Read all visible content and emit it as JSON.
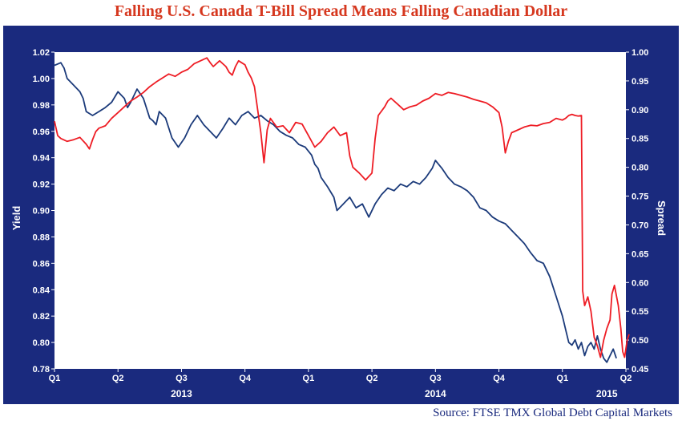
{
  "title": "Falling U.S. Canada T-Bill Spread Means Falling Canadian Dollar",
  "source": "Source: FTSE TMX Global Debt Capital Markets",
  "colors": {
    "frame": "#1a2a7e",
    "yield_line": "#1b3a7a",
    "spread_line": "#ee1c24",
    "title": "#d6381f"
  },
  "chart_data": {
    "type": "line",
    "ylabel": "Yield",
    "y2label": "Spread",
    "ylim": [
      0.78,
      1.02
    ],
    "y2lim": [
      0.45,
      1.0
    ],
    "yticks": [
      "0.78",
      "0.80",
      "0.82",
      "0.84",
      "0.86",
      "0.88",
      "0.90",
      "0.92",
      "0.94",
      "0.96",
      "0.98",
      "1.00",
      "1.02"
    ],
    "y2ticks": [
      "0.45",
      "0.50",
      "0.55",
      "0.60",
      "0.65",
      "0.70",
      "0.75",
      "0.80",
      "0.85",
      "0.90",
      "0.95",
      "1.00"
    ],
    "xlim": [
      0,
      9
    ],
    "xticks": [
      {
        "x": 0,
        "label": "Q1"
      },
      {
        "x": 1,
        "label": "Q2"
      },
      {
        "x": 2,
        "label": "Q3"
      },
      {
        "x": 3,
        "label": "Q4"
      },
      {
        "x": 4,
        "label": "Q1"
      },
      {
        "x": 5,
        "label": "Q2"
      },
      {
        "x": 6,
        "label": "Q3"
      },
      {
        "x": 7,
        "label": "Q4"
      },
      {
        "x": 8,
        "label": "Q1"
      },
      {
        "x": 9,
        "label": "Q2"
      }
    ],
    "years": [
      {
        "x": 2.0,
        "label": "2013"
      },
      {
        "x": 6.0,
        "label": "2014"
      },
      {
        "x": 8.7,
        "label": "2015"
      }
    ],
    "series": [
      {
        "axis": "left",
        "points": [
          [
            0.0,
            1.01
          ],
          [
            0.1,
            1.012
          ],
          [
            0.15,
            1.008
          ],
          [
            0.2,
            1.0
          ],
          [
            0.3,
            0.995
          ],
          [
            0.4,
            0.99
          ],
          [
            0.45,
            0.985
          ],
          [
            0.5,
            0.975
          ],
          [
            0.6,
            0.972
          ],
          [
            0.7,
            0.975
          ],
          [
            0.8,
            0.978
          ],
          [
            0.9,
            0.982
          ],
          [
            1.0,
            0.99
          ],
          [
            1.1,
            0.985
          ],
          [
            1.15,
            0.978
          ],
          [
            1.2,
            0.982
          ],
          [
            1.3,
            0.992
          ],
          [
            1.4,
            0.985
          ],
          [
            1.5,
            0.97
          ],
          [
            1.55,
            0.968
          ],
          [
            1.6,
            0.965
          ],
          [
            1.65,
            0.975
          ],
          [
            1.75,
            0.97
          ],
          [
            1.85,
            0.955
          ],
          [
            1.95,
            0.948
          ],
          [
            2.05,
            0.955
          ],
          [
            2.15,
            0.965
          ],
          [
            2.25,
            0.972
          ],
          [
            2.35,
            0.965
          ],
          [
            2.45,
            0.96
          ],
          [
            2.55,
            0.955
          ],
          [
            2.65,
            0.962
          ],
          [
            2.75,
            0.97
          ],
          [
            2.85,
            0.965
          ],
          [
            2.95,
            0.972
          ],
          [
            3.05,
            0.975
          ],
          [
            3.15,
            0.97
          ],
          [
            3.25,
            0.972
          ],
          [
            3.35,
            0.968
          ],
          [
            3.45,
            0.965
          ],
          [
            3.55,
            0.96
          ],
          [
            3.65,
            0.957
          ],
          [
            3.75,
            0.955
          ],
          [
            3.85,
            0.95
          ],
          [
            3.95,
            0.948
          ],
          [
            4.05,
            0.942
          ],
          [
            4.1,
            0.935
          ],
          [
            4.15,
            0.932
          ],
          [
            4.2,
            0.925
          ],
          [
            4.3,
            0.918
          ],
          [
            4.4,
            0.91
          ],
          [
            4.45,
            0.9
          ],
          [
            4.55,
            0.905
          ],
          [
            4.65,
            0.91
          ],
          [
            4.75,
            0.902
          ],
          [
            4.85,
            0.905
          ],
          [
            4.95,
            0.895
          ],
          [
            5.05,
            0.905
          ],
          [
            5.15,
            0.912
          ],
          [
            5.25,
            0.917
          ],
          [
            5.35,
            0.915
          ],
          [
            5.45,
            0.92
          ],
          [
            5.55,
            0.918
          ],
          [
            5.65,
            0.922
          ],
          [
            5.75,
            0.92
          ],
          [
            5.85,
            0.925
          ],
          [
            5.95,
            0.932
          ],
          [
            6.0,
            0.938
          ],
          [
            6.05,
            0.935
          ],
          [
            6.1,
            0.932
          ],
          [
            6.2,
            0.925
          ],
          [
            6.3,
            0.92
          ],
          [
            6.4,
            0.918
          ],
          [
            6.5,
            0.915
          ],
          [
            6.6,
            0.91
          ],
          [
            6.7,
            0.902
          ],
          [
            6.8,
            0.9
          ],
          [
            6.9,
            0.895
          ],
          [
            7.0,
            0.892
          ],
          [
            7.1,
            0.89
          ],
          [
            7.2,
            0.885
          ],
          [
            7.3,
            0.88
          ],
          [
            7.4,
            0.875
          ],
          [
            7.5,
            0.868
          ],
          [
            7.6,
            0.862
          ],
          [
            7.7,
            0.86
          ],
          [
            7.8,
            0.85
          ],
          [
            7.9,
            0.835
          ],
          [
            8.0,
            0.82
          ],
          [
            8.05,
            0.81
          ],
          [
            8.1,
            0.8
          ],
          [
            8.15,
            0.798
          ],
          [
            8.2,
            0.802
          ],
          [
            8.25,
            0.795
          ],
          [
            8.3,
            0.8
          ],
          [
            8.35,
            0.79
          ],
          [
            8.4,
            0.797
          ],
          [
            8.45,
            0.8
          ],
          [
            8.5,
            0.795
          ],
          [
            8.55,
            0.805
          ],
          [
            8.6,
            0.795
          ],
          [
            8.65,
            0.788
          ],
          [
            8.7,
            0.785
          ],
          [
            8.75,
            0.79
          ],
          [
            8.8,
            0.795
          ],
          [
            8.85,
            0.788
          ]
        ]
      },
      {
        "axis": "right",
        "points": [
          [
            0.0,
            0.88
          ],
          [
            0.05,
            0.855
          ],
          [
            0.1,
            0.85
          ],
          [
            0.2,
            0.845
          ],
          [
            0.3,
            0.848
          ],
          [
            0.4,
            0.852
          ],
          [
            0.5,
            0.84
          ],
          [
            0.55,
            0.832
          ],
          [
            0.6,
            0.848
          ],
          [
            0.65,
            0.862
          ],
          [
            0.7,
            0.868
          ],
          [
            0.8,
            0.872
          ],
          [
            0.9,
            0.885
          ],
          [
            1.0,
            0.895
          ],
          [
            1.1,
            0.905
          ],
          [
            1.2,
            0.915
          ],
          [
            1.3,
            0.922
          ],
          [
            1.4,
            0.93
          ],
          [
            1.5,
            0.94
          ],
          [
            1.6,
            0.948
          ],
          [
            1.7,
            0.955
          ],
          [
            1.8,
            0.962
          ],
          [
            1.9,
            0.958
          ],
          [
            2.0,
            0.965
          ],
          [
            2.1,
            0.97
          ],
          [
            2.2,
            0.98
          ],
          [
            2.3,
            0.985
          ],
          [
            2.4,
            0.99
          ],
          [
            2.45,
            0.982
          ],
          [
            2.5,
            0.975
          ],
          [
            2.6,
            0.985
          ],
          [
            2.7,
            0.975
          ],
          [
            2.75,
            0.965
          ],
          [
            2.8,
            0.96
          ],
          [
            2.85,
            0.975
          ],
          [
            2.9,
            0.985
          ],
          [
            3.0,
            0.978
          ],
          [
            3.05,
            0.965
          ],
          [
            3.1,
            0.955
          ],
          [
            3.15,
            0.94
          ],
          [
            3.2,
            0.9
          ],
          [
            3.25,
            0.86
          ],
          [
            3.3,
            0.808
          ],
          [
            3.35,
            0.865
          ],
          [
            3.4,
            0.885
          ],
          [
            3.5,
            0.87
          ],
          [
            3.6,
            0.872
          ],
          [
            3.7,
            0.86
          ],
          [
            3.8,
            0.878
          ],
          [
            3.9,
            0.875
          ],
          [
            4.0,
            0.855
          ],
          [
            4.1,
            0.835
          ],
          [
            4.2,
            0.845
          ],
          [
            4.3,
            0.86
          ],
          [
            4.4,
            0.87
          ],
          [
            4.5,
            0.855
          ],
          [
            4.6,
            0.86
          ],
          [
            4.65,
            0.82
          ],
          [
            4.7,
            0.8
          ],
          [
            4.75,
            0.795
          ],
          [
            4.8,
            0.79
          ],
          [
            4.9,
            0.778
          ],
          [
            5.0,
            0.79
          ],
          [
            5.05,
            0.85
          ],
          [
            5.1,
            0.89
          ],
          [
            5.2,
            0.905
          ],
          [
            5.25,
            0.915
          ],
          [
            5.3,
            0.92
          ],
          [
            5.4,
            0.91
          ],
          [
            5.5,
            0.9
          ],
          [
            5.6,
            0.905
          ],
          [
            5.7,
            0.908
          ],
          [
            5.8,
            0.915
          ],
          [
            5.9,
            0.92
          ],
          [
            6.0,
            0.928
          ],
          [
            6.1,
            0.925
          ],
          [
            6.2,
            0.93
          ],
          [
            6.3,
            0.928
          ],
          [
            6.4,
            0.925
          ],
          [
            6.5,
            0.922
          ],
          [
            6.6,
            0.918
          ],
          [
            6.7,
            0.915
          ],
          [
            6.8,
            0.912
          ],
          [
            6.9,
            0.905
          ],
          [
            7.0,
            0.895
          ],
          [
            7.05,
            0.87
          ],
          [
            7.1,
            0.825
          ],
          [
            7.15,
            0.845
          ],
          [
            7.2,
            0.86
          ],
          [
            7.3,
            0.865
          ],
          [
            7.4,
            0.87
          ],
          [
            7.5,
            0.873
          ],
          [
            7.6,
            0.872
          ],
          [
            7.7,
            0.876
          ],
          [
            7.8,
            0.878
          ],
          [
            7.9,
            0.885
          ],
          [
            8.0,
            0.882
          ],
          [
            8.05,
            0.885
          ],
          [
            8.1,
            0.89
          ],
          [
            8.15,
            0.892
          ],
          [
            8.2,
            0.89
          ],
          [
            8.25,
            0.889
          ],
          [
            8.3,
            0.89
          ],
          [
            8.32,
            0.585
          ],
          [
            8.35,
            0.56
          ],
          [
            8.4,
            0.575
          ],
          [
            8.45,
            0.55
          ],
          [
            8.5,
            0.505
          ],
          [
            8.55,
            0.49
          ],
          [
            8.6,
            0.47
          ],
          [
            8.65,
            0.5
          ],
          [
            8.7,
            0.52
          ],
          [
            8.75,
            0.535
          ],
          [
            8.78,
            0.58
          ],
          [
            8.82,
            0.595
          ],
          [
            8.88,
            0.56
          ],
          [
            8.92,
            0.52
          ],
          [
            8.95,
            0.48
          ],
          [
            8.98,
            0.47
          ],
          [
            9.02,
            0.5
          ],
          [
            9.05,
            0.51
          ]
        ]
      }
    ]
  }
}
